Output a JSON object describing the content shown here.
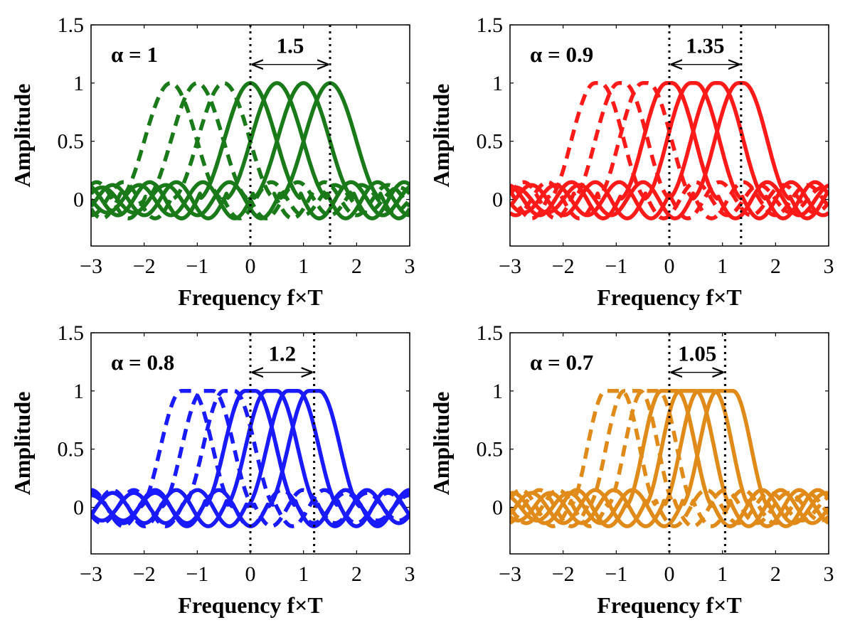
{
  "chart_data": [
    {
      "type": "line",
      "name": "panel-alpha-1",
      "alpha_label": "α = 1",
      "span_label": "1.5",
      "alpha": 1.0,
      "span": 1.5,
      "color": "#1a7a1a",
      "xlabel": "Frequency f×T",
      "ylabel": "Amplitude",
      "xlim": [
        -3,
        3
      ],
      "ylim": [
        -0.4,
        1.5
      ],
      "xticks": [
        "−3",
        "−2",
        "−1",
        "0",
        "1",
        "2",
        "3"
      ],
      "yticks": [
        "0",
        "0.5",
        "1",
        "1.5"
      ],
      "solid_centers": [
        0,
        0.5,
        1.0,
        1.5
      ],
      "dashed_centers": [
        -1.5,
        -1.0,
        -0.5,
        0
      ],
      "vlines": [
        0,
        1.5
      ]
    },
    {
      "type": "line",
      "name": "panel-alpha-0.9",
      "alpha_label": "α = 0.9",
      "span_label": "1.35",
      "alpha": 0.9,
      "span": 1.35,
      "color": "#ff1a1a",
      "xlabel": "Frequency f×T",
      "ylabel": "Amplitude",
      "xlim": [
        -3,
        3
      ],
      "ylim": [
        -0.4,
        1.5
      ],
      "xticks": [
        "−3",
        "−2",
        "−1",
        "0",
        "1",
        "2",
        "3"
      ],
      "yticks": [
        "0",
        "0.5",
        "1",
        "1.5"
      ],
      "solid_centers": [
        0,
        0.45,
        0.9,
        1.35
      ],
      "dashed_centers": [
        -1.35,
        -0.9,
        -0.45,
        0
      ],
      "vlines": [
        0,
        1.35
      ]
    },
    {
      "type": "line",
      "name": "panel-alpha-0.8",
      "alpha_label": "α = 0.8",
      "span_label": "1.2",
      "alpha": 0.8,
      "span": 1.2,
      "color": "#1a1aff",
      "xlabel": "Frequency f×T",
      "ylabel": "Amplitude",
      "xlim": [
        -3,
        3
      ],
      "ylim": [
        -0.4,
        1.5
      ],
      "xticks": [
        "−3",
        "−2",
        "−1",
        "0",
        "1",
        "2",
        "3"
      ],
      "yticks": [
        "0",
        "0.5",
        "1",
        "1.5"
      ],
      "solid_centers": [
        0,
        0.4,
        0.8,
        1.2
      ],
      "dashed_centers": [
        -1.2,
        -0.8,
        -0.4,
        0
      ],
      "vlines": [
        0,
        1.2
      ]
    },
    {
      "type": "line",
      "name": "panel-alpha-0.7",
      "alpha_label": "α = 0.7",
      "span_label": "1.05",
      "alpha": 0.7,
      "span": 1.05,
      "color": "#e08a1a",
      "xlabel": "Frequency f×T",
      "ylabel": "Amplitude",
      "xlim": [
        -3,
        3
      ],
      "ylim": [
        -0.4,
        1.5
      ],
      "xticks": [
        "−3",
        "−2",
        "−1",
        "0",
        "1",
        "2",
        "3"
      ],
      "yticks": [
        "0",
        "0.5",
        "1",
        "1.5"
      ],
      "solid_centers": [
        0,
        0.35,
        0.7,
        1.05
      ],
      "dashed_centers": [
        -1.05,
        -0.7,
        -0.35,
        0
      ],
      "vlines": [
        0,
        1.05
      ]
    }
  ]
}
